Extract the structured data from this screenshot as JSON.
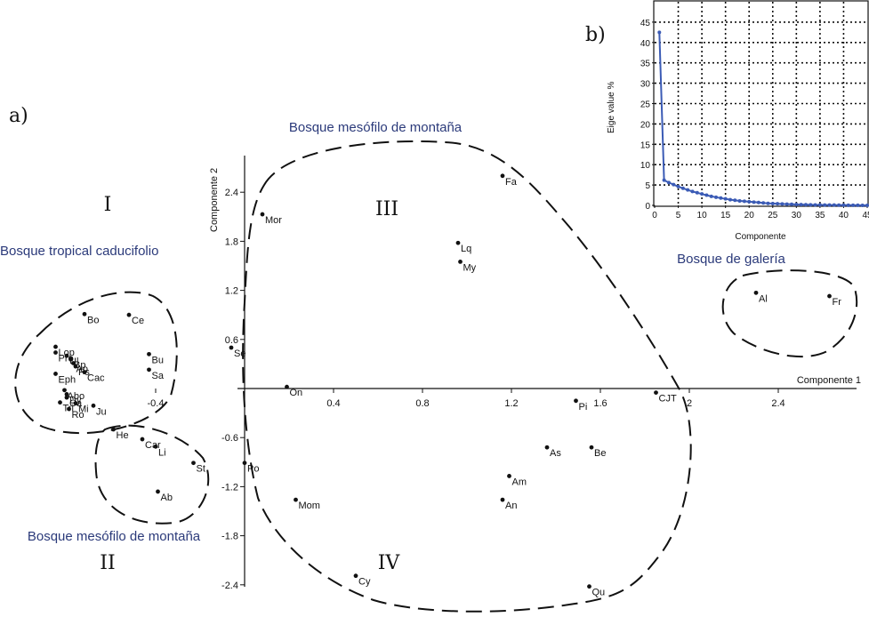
{
  "colors": {
    "ink": "#111111",
    "group_label": "#2b3a7a",
    "scree_line": "#3b5bb5"
  },
  "panel_a": {
    "panel_label": "a)",
    "region_labels": {
      "I": "I",
      "II": "II",
      "III": "III",
      "IV": "IV"
    },
    "group_labels": {
      "btc": "Bosque tropical caducifolio",
      "bmm_top": "Bosque mesófilo de montaña",
      "bmm_bottom": "Bosque mesófilo de montaña",
      "galeria": "Bosque de galería"
    }
  },
  "panel_b": {
    "panel_label": "b)"
  },
  "chart_data": [
    {
      "type": "scatter",
      "xlabel": "Componente 1",
      "ylabel": "Componente 2",
      "xlim": [
        -1.38,
        2.65
      ],
      "ylim": [
        -2.55,
        2.75
      ],
      "x_ticks": [
        "-0.4",
        "0.4",
        "0.8",
        "1.2",
        "1.6",
        "2",
        "2.4"
      ],
      "x_tick_values": [
        -0.4,
        0.4,
        0.8,
        1.2,
        1.6,
        2.0,
        2.4
      ],
      "y_ticks": [
        "2.4",
        "1.8",
        "1.2",
        "0.6",
        "-0.6",
        "-1.2",
        "-1.8",
        "-2.4"
      ],
      "y_tick_values": [
        2.4,
        1.8,
        1.2,
        0.6,
        -0.6,
        -1.2,
        -1.8,
        -2.4
      ],
      "points": [
        {
          "label": "Fa",
          "x": 1.16,
          "y": 2.6
        },
        {
          "label": "Mor",
          "x": 0.08,
          "y": 2.13
        },
        {
          "label": "Lq",
          "x": 0.96,
          "y": 1.78
        },
        {
          "label": "My",
          "x": 0.97,
          "y": 1.55
        },
        {
          "label": "Al",
          "x": 2.3,
          "y": 1.17
        },
        {
          "label": "Fr",
          "x": 2.63,
          "y": 1.13
        },
        {
          "label": "Bo",
          "x": -0.72,
          "y": 0.91
        },
        {
          "label": "Ce",
          "x": -0.52,
          "y": 0.9
        },
        {
          "label": "Lop",
          "x": -0.85,
          "y": 0.51
        },
        {
          "label": "Pro",
          "x": -0.85,
          "y": 0.44
        },
        {
          "label": "Ul",
          "x": -0.8,
          "y": 0.4
        },
        {
          "label": "Bp",
          "x": -0.78,
          "y": 0.36
        },
        {
          "label": "Ap",
          "x": -0.77,
          "y": 0.31
        },
        {
          "label": "Ps",
          "x": -0.76,
          "y": 0.27
        },
        {
          "label": "Cac",
          "x": -0.72,
          "y": 0.2
        },
        {
          "label": "Eph",
          "x": -0.85,
          "y": 0.18
        },
        {
          "label": "Se",
          "x": -0.06,
          "y": 0.5
        },
        {
          "label": "Bu",
          "x": -0.43,
          "y": 0.42
        },
        {
          "label": "Sa",
          "x": -0.43,
          "y": 0.23
        },
        {
          "label": "On",
          "x": 0.19,
          "y": 0.02
        },
        {
          "label": "CJT",
          "x": 1.85,
          "y": -0.05
        },
        {
          "label": "Pi",
          "x": 1.49,
          "y": -0.15
        },
        {
          "label": "Abo",
          "x": -0.81,
          "y": -0.02
        },
        {
          "label": "Dy",
          "x": -0.8,
          "y": -0.07
        },
        {
          "label": "Ca",
          "x": -0.8,
          "y": -0.11
        },
        {
          "label": "Tri",
          "x": -0.83,
          "y": -0.17
        },
        {
          "label": "Mi",
          "x": -0.76,
          "y": -0.18
        },
        {
          "label": "Ro",
          "x": -0.79,
          "y": -0.25
        },
        {
          "label": "Ju",
          "x": -0.68,
          "y": -0.21
        },
        {
          "label": "He",
          "x": -0.59,
          "y": -0.5
        },
        {
          "label": "Car",
          "x": -0.46,
          "y": -0.62
        },
        {
          "label": "Li",
          "x": -0.4,
          "y": -0.71
        },
        {
          "label": "St",
          "x": -0.23,
          "y": -0.91
        },
        {
          "label": "Ab",
          "x": -0.39,
          "y": -1.26
        },
        {
          "label": "Po",
          "x": 0.0,
          "y": -0.91
        },
        {
          "label": "As",
          "x": 1.36,
          "y": -0.72
        },
        {
          "label": "Be",
          "x": 1.56,
          "y": -0.72
        },
        {
          "label": "Am",
          "x": 1.19,
          "y": -1.07
        },
        {
          "label": "An",
          "x": 1.16,
          "y": -1.36
        },
        {
          "label": "Mom",
          "x": 0.23,
          "y": -1.36
        },
        {
          "label": "Cy",
          "x": 0.5,
          "y": -2.29
        },
        {
          "label": "Qu",
          "x": 1.55,
          "y": -2.42
        }
      ]
    },
    {
      "type": "line",
      "xlabel": "Componente",
      "ylabel": "Eige value %",
      "xlim": [
        0,
        45
      ],
      "ylim": [
        0,
        50
      ],
      "grid": true,
      "x_ticks": [
        "0",
        "5",
        "10",
        "15",
        "20",
        "25",
        "30",
        "35",
        "40",
        "45"
      ],
      "y_ticks": [
        "0",
        "5",
        "10",
        "15",
        "20",
        "25",
        "30",
        "35",
        "40",
        "45"
      ],
      "x": [
        1,
        2,
        3,
        4,
        5,
        6,
        7,
        8,
        9,
        10,
        11,
        12,
        13,
        14,
        15,
        16,
        17,
        18,
        19,
        20,
        21,
        22,
        23,
        24,
        25,
        26,
        27,
        28,
        29,
        30,
        31,
        32,
        33,
        34,
        35,
        36,
        37,
        38,
        39,
        40,
        41,
        42,
        43,
        44,
        45
      ],
      "values": [
        42.5,
        6.2,
        5.6,
        5.1,
        4.6,
        4.2,
        3.8,
        3.4,
        3.1,
        2.8,
        2.5,
        2.2,
        2.0,
        1.8,
        1.6,
        1.4,
        1.25,
        1.1,
        1.0,
        0.9,
        0.8,
        0.7,
        0.6,
        0.5,
        0.45,
        0.4,
        0.35,
        0.3,
        0.26,
        0.22,
        0.19,
        0.16,
        0.14,
        0.12,
        0.1,
        0.09,
        0.08,
        0.07,
        0.06,
        0.05,
        0.04,
        0.03,
        0.02,
        0.01,
        0.0
      ]
    }
  ]
}
